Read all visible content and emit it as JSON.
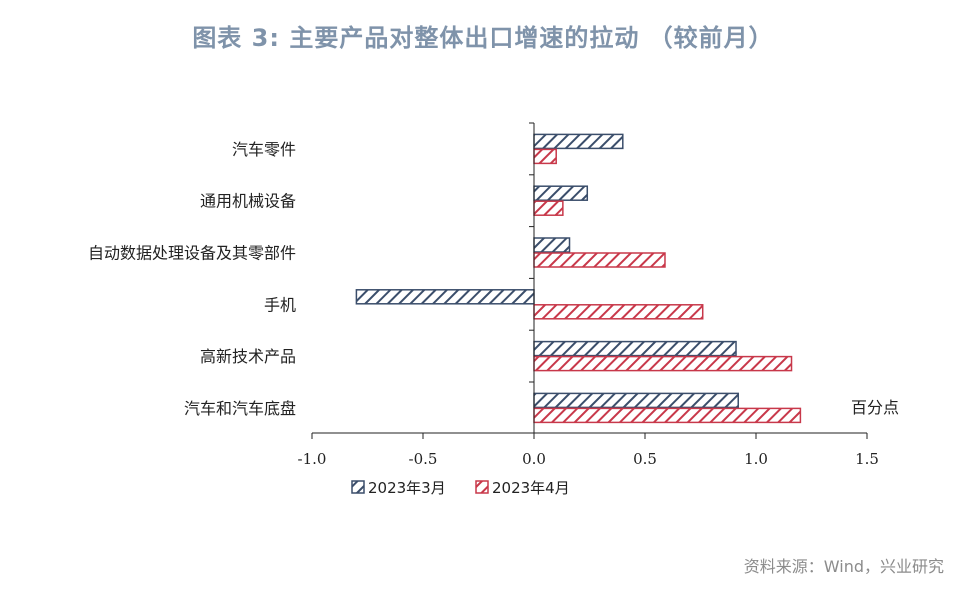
{
  "title": "图表 3:  主要产品对整体出口增速的拉动  （较前月）",
  "source": "资料来源：Wind，兴业研究",
  "colors": {
    "series1": "#3b4e6b",
    "series2": "#c8384a"
  },
  "chart_data": {
    "type": "bar",
    "orientation": "horizontal",
    "categories": [
      "汽车零件",
      "通用机械设备",
      "自动数据处理设备及其零部件",
      "手机",
      "高新技术产品",
      "汽车和汽车底盘"
    ],
    "series": [
      {
        "name": "2023年3月",
        "values": [
          0.4,
          0.24,
          0.16,
          -0.8,
          0.91,
          0.92
        ]
      },
      {
        "name": "2023年4月",
        "values": [
          0.1,
          0.13,
          0.59,
          0.76,
          1.16,
          1.2
        ]
      }
    ],
    "xlim": [
      -1.0,
      1.5
    ],
    "xticks": [
      -1.0,
      -0.5,
      0.0,
      0.5,
      1.0,
      1.5
    ],
    "xtick_labels": [
      "-1.0",
      "-0.5",
      "0.0",
      "0.5",
      "1.0",
      "1.5"
    ],
    "unit_label": "百分点",
    "legend_position": "bottom",
    "grid": false
  }
}
